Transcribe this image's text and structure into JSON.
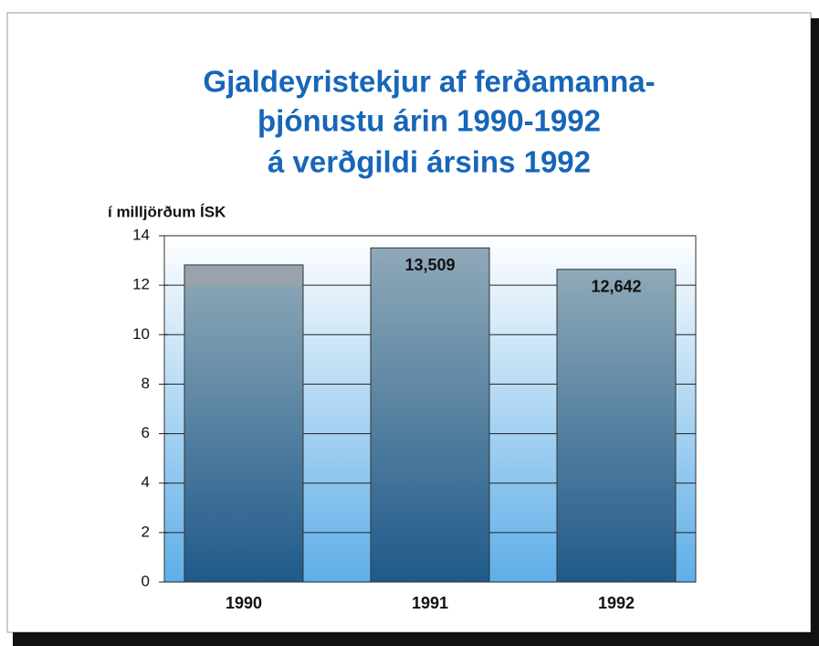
{
  "chart_data": {
    "type": "bar",
    "title": [
      "Gjaldeyristekjur af ferðamanna-",
      "þjónustu árin 1990-1992",
      "á verðgildi ársins 1992"
    ],
    "y_label": "í milljörðum ÍSK",
    "categories": [
      "1990",
      "1991",
      "1992"
    ],
    "values": [
      12.82,
      13.509,
      12.642
    ],
    "value_labels": [
      null,
      "13,509",
      "12,642"
    ],
    "color": "#1f5a8a",
    "ylim": [
      0,
      14
    ],
    "yticks": [
      0,
      2,
      4,
      6,
      8,
      10,
      12,
      14
    ],
    "grid": true
  }
}
